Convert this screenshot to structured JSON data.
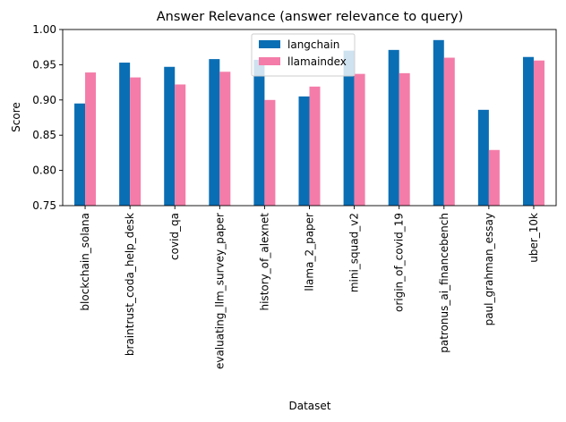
{
  "chart_data": {
    "type": "bar",
    "title": "Answer Relevance (answer relevance to query)",
    "xlabel": "Dataset",
    "ylabel": "Score",
    "ylim": [
      0.75,
      1.0
    ],
    "yticks": [
      "0.75",
      "0.80",
      "0.85",
      "0.90",
      "0.95",
      "1.00"
    ],
    "legend_position": "top-center",
    "categories": [
      "blockchain_solana",
      "braintrust_coda_help_desk",
      "covid_qa",
      "evaluating_llm_survey_paper",
      "history_of_alexnet",
      "llama_2_paper",
      "mini_squad_v2",
      "origin_of_covid_19",
      "patronus_ai_financebench",
      "paul_grahman_essay",
      "uber_10k"
    ],
    "series": [
      {
        "name": "langchain",
        "color": "#0a6eb4",
        "values": [
          0.895,
          0.953,
          0.947,
          0.958,
          0.957,
          0.905,
          0.97,
          0.971,
          0.985,
          0.886,
          0.961
        ]
      },
      {
        "name": "llamaindex",
        "color": "#f47ca8",
        "values": [
          0.939,
          0.932,
          0.922,
          0.94,
          0.9,
          0.919,
          0.937,
          0.938,
          0.96,
          0.829,
          0.956
        ]
      }
    ]
  }
}
